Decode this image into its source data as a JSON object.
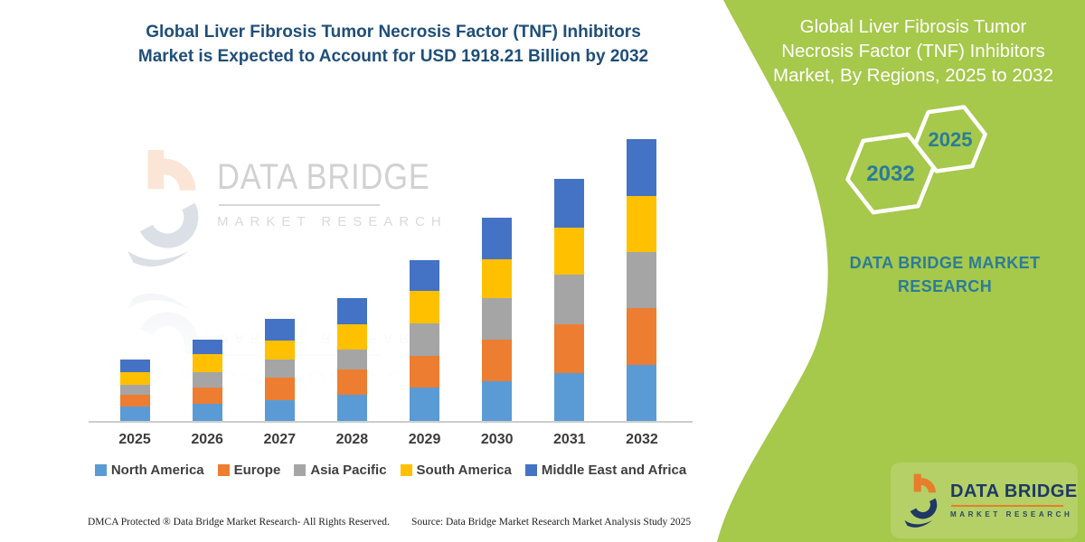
{
  "header": {
    "title_lines": [
      "Global Liver Fibrosis Tumor Necrosis Factor (TNF) Inhibitors",
      "Market is Expected to Account for USD 1918.21 Billion by 2032"
    ],
    "title_color": "#1F4E79"
  },
  "chart_data": {
    "type": "bar",
    "stacked": true,
    "title": "Global Liver Fibrosis Tumor Necrosis Factor (TNF) Inhibitors Market, By Regions",
    "unit": "USD Billion (estimated from bar heights)",
    "categories": [
      "2025",
      "2026",
      "2027",
      "2028",
      "2029",
      "2030",
      "2031",
      "2032"
    ],
    "series": [
      {
        "name": "North America",
        "color": "#5B9BD5",
        "values": [
          100,
          117,
          140,
          181,
          226,
          272,
          328,
          384
        ]
      },
      {
        "name": "Europe",
        "color": "#ED7D31",
        "values": [
          78,
          112,
          158,
          172,
          215,
          283,
          330,
          383
        ]
      },
      {
        "name": "Asia Pacific",
        "color": "#A5A5A5",
        "values": [
          71,
          106,
          123,
          133,
          225,
          283,
          338,
          385
        ]
      },
      {
        "name": "South America",
        "color": "#FFC000",
        "values": [
          86,
          119,
          129,
          175,
          221,
          261,
          322,
          382
        ]
      },
      {
        "name": "Middle East and Africa",
        "color": "#4472C4",
        "values": [
          82,
          102,
          148,
          174,
          205,
          283,
          328,
          384.21
        ]
      }
    ],
    "totals": [
      417,
      556,
      698,
      835,
      1092,
      1382,
      1646,
      1918.21
    ],
    "ylim": [
      0,
      1918.21
    ],
    "gridlines": false,
    "y_axis_shown": false,
    "legend_position": "bottom",
    "annotation_total_2032": "USD 1918.21 Billion"
  },
  "watermark": {
    "line1": "DATA BRIDGE",
    "line2": "MARKET RESEARCH"
  },
  "panel": {
    "bg_color": "#A6C84B",
    "text_color": "#2B7C99",
    "title_lines": [
      "Global Liver Fibrosis Tumor",
      "Necrosis Factor (TNF) Inhibitors",
      "Market, By Regions, 2025 to 2032"
    ],
    "hexagons": [
      {
        "label": "2032"
      },
      {
        "label": "2025"
      }
    ],
    "brand_lines": [
      "DATA BRIDGE MARKET",
      "RESEARCH"
    ]
  },
  "logo": {
    "name": "DATA BRIDGE",
    "sub": "MARKET RESEARCH",
    "navy": "#1F3864",
    "orange": "#E87D2B"
  },
  "footer": {
    "dmca": "DMCA Protected ® Data Bridge Market Research-  All Rights Reserved.",
    "source": "Source: Data Bridge Market Research  Market Analysis Study 2025"
  }
}
